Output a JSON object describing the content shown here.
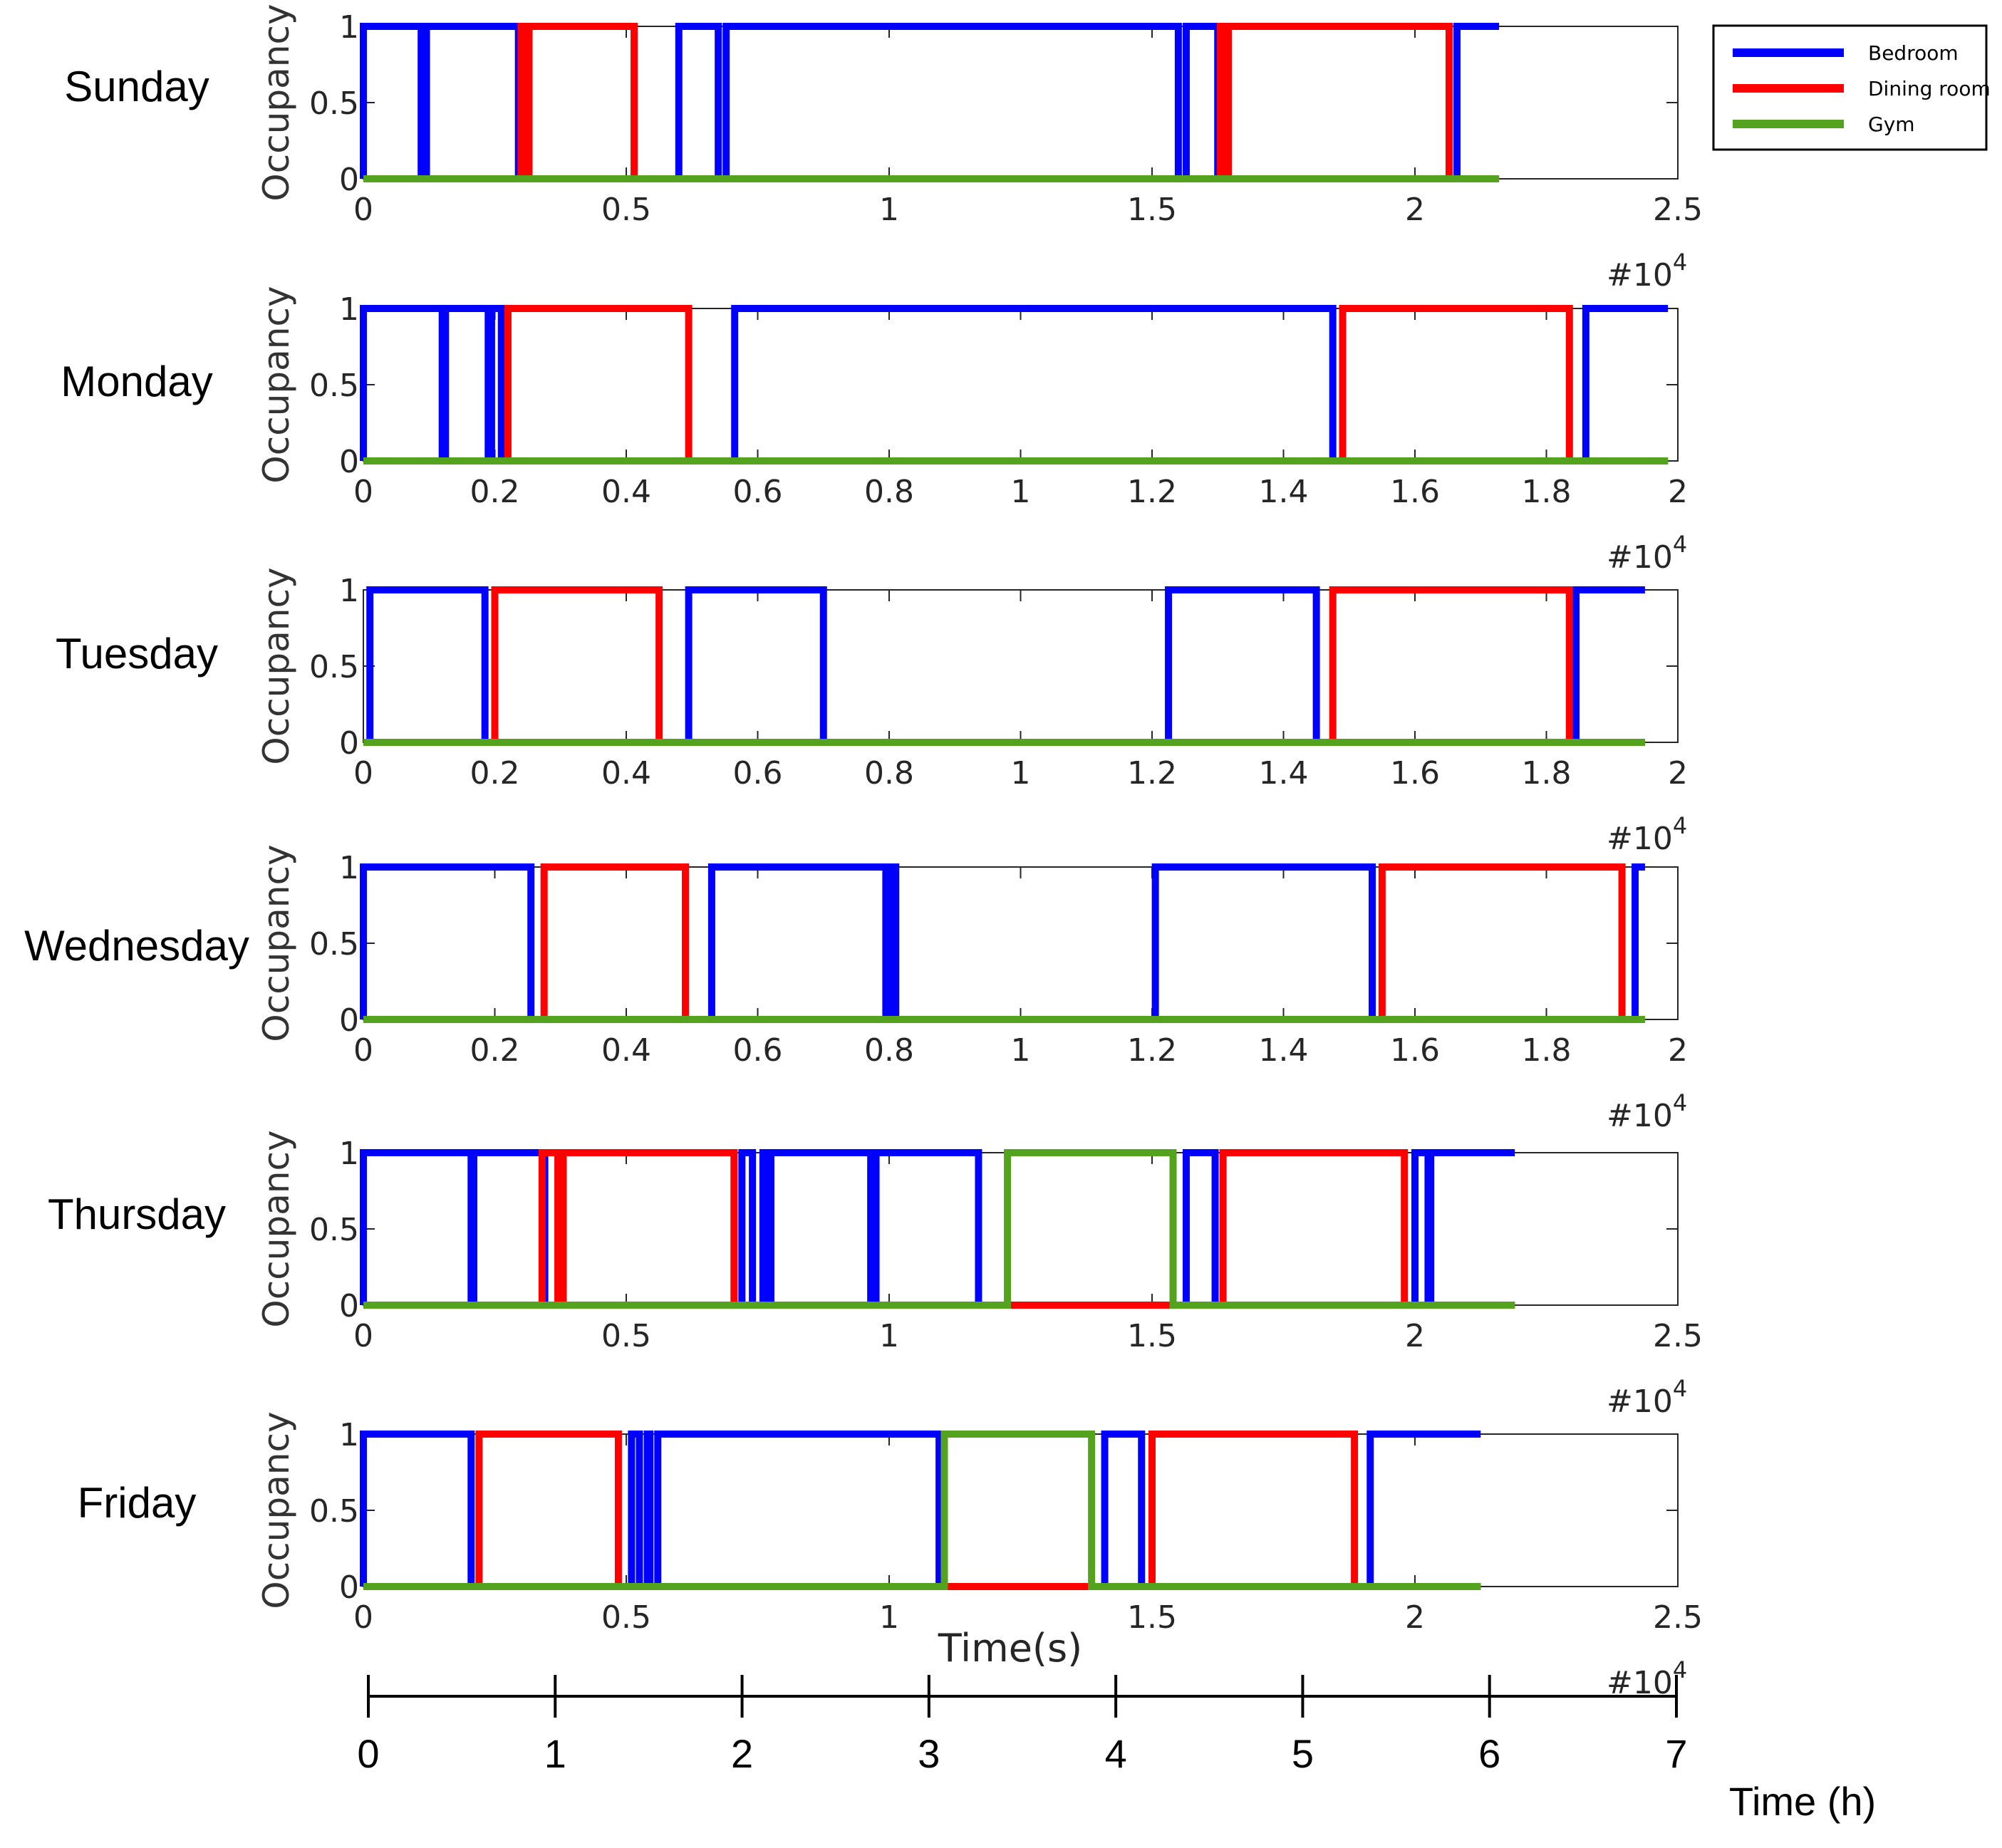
{
  "chart_data": {
    "type": "line",
    "title": "",
    "ylabel": "Occupancy",
    "xlabel": "Time(s)",
    "exponent_label": "#10",
    "exponent_power": "4",
    "yticks": [
      0,
      0.5,
      1
    ],
    "ytick_labels": [
      "0",
      "0.5",
      "1"
    ],
    "legend": [
      {
        "name": "Bedroom",
        "color": "#0000ff"
      },
      {
        "name": "Dining room",
        "color": "#ff0000"
      },
      {
        "name": "Gym",
        "color": "#54a31f"
      }
    ],
    "hour_axis": {
      "label": "Time (h)",
      "ticks": [
        "0",
        "1",
        "2",
        "3",
        "4",
        "5",
        "6",
        "7"
      ]
    },
    "panels": [
      {
        "day": "Sunday",
        "xlim": [
          0,
          2.5
        ],
        "xticks": [
          0,
          0.5,
          1,
          1.5,
          2,
          2.5
        ],
        "xtick_labels": [
          "0",
          "0.5",
          "1",
          "1.5",
          "2",
          "2.5"
        ],
        "series": [
          {
            "name": "Bedroom",
            "intervals": [
              [
                0.0,
                0.11
              ],
              [
                0.12,
                0.295
              ],
              [
                0.6,
                0.675
              ],
              [
                0.69,
                1.55
              ],
              [
                1.565,
                1.625
              ],
              [
                2.08,
                2.16
              ]
            ]
          },
          {
            "name": "Dining room",
            "intervals": [
              [
                0.3,
                0.31
              ],
              [
                0.315,
                0.515
              ],
              [
                1.63,
                1.64
              ],
              [
                1.645,
                2.065
              ]
            ]
          },
          {
            "name": "Gym",
            "intervals": []
          }
        ],
        "end": 2.16
      },
      {
        "day": "Monday",
        "xlim": [
          0,
          2
        ],
        "xticks": [
          0,
          0.2,
          0.4,
          0.6,
          0.8,
          1,
          1.2,
          1.4,
          1.6,
          1.8,
          2
        ],
        "xtick_labels": [
          "0",
          "0.2",
          "0.4",
          "0.6",
          "0.8",
          "1",
          "1.2",
          "1.4",
          "1.6",
          "1.8",
          "2"
        ],
        "series": [
          {
            "name": "Bedroom",
            "intervals": [
              [
                0.0,
                0.12
              ],
              [
                0.125,
                0.19
              ],
              [
                0.195,
                0.21
              ],
              [
                0.565,
                1.475
              ],
              [
                1.86,
                1.985
              ]
            ]
          },
          {
            "name": "Dining room",
            "intervals": [
              [
                0.22,
                0.495
              ],
              [
                1.49,
                1.835
              ]
            ]
          },
          {
            "name": "Gym",
            "intervals": []
          }
        ],
        "end": 1.985
      },
      {
        "day": "Tuesday",
        "xlim": [
          0,
          2
        ],
        "xticks": [
          0,
          0.2,
          0.4,
          0.6,
          0.8,
          1,
          1.2,
          1.4,
          1.6,
          1.8,
          2
        ],
        "xtick_labels": [
          "0",
          "0.2",
          "0.4",
          "0.6",
          "0.8",
          "1",
          "1.2",
          "1.4",
          "1.6",
          "1.8",
          "2"
        ],
        "series": [
          {
            "name": "Bedroom",
            "intervals": [
              [
                0.01,
                0.185
              ],
              [
                0.495,
                0.7
              ],
              [
                1.225,
                1.45
              ],
              [
                1.845,
                1.95
              ]
            ]
          },
          {
            "name": "Dining room",
            "intervals": [
              [
                0.2,
                0.45
              ],
              [
                1.475,
                1.835
              ]
            ]
          },
          {
            "name": "Gym",
            "intervals": []
          }
        ],
        "end": 1.95
      },
      {
        "day": "Wednesday",
        "xlim": [
          0,
          2
        ],
        "xticks": [
          0,
          0.2,
          0.4,
          0.6,
          0.8,
          1,
          1.2,
          1.4,
          1.6,
          1.8,
          2
        ],
        "xtick_labels": [
          "0",
          "0.2",
          "0.4",
          "0.6",
          "0.8",
          "1",
          "1.2",
          "1.4",
          "1.6",
          "1.8",
          "2"
        ],
        "series": [
          {
            "name": "Bedroom",
            "intervals": [
              [
                0.0,
                0.255
              ],
              [
                0.53,
                0.795
              ],
              [
                0.8,
                0.81
              ],
              [
                1.205,
                1.535
              ],
              [
                1.935,
                1.95
              ]
            ]
          },
          {
            "name": "Dining room",
            "intervals": [
              [
                0.275,
                0.49
              ],
              [
                1.55,
                1.915
              ]
            ]
          },
          {
            "name": "Gym",
            "intervals": []
          }
        ],
        "end": 1.95
      },
      {
        "day": "Thursday",
        "xlim": [
          0,
          2.5
        ],
        "xticks": [
          0,
          0.5,
          1,
          1.5,
          2,
          2.5
        ],
        "xtick_labels": [
          "0",
          "0.5",
          "1",
          "1.5",
          "2",
          "2.5"
        ],
        "series": [
          {
            "name": "Bedroom",
            "intervals": [
              [
                0.0,
                0.205
              ],
              [
                0.21,
                0.345
              ],
              [
                0.72,
                0.74
              ],
              [
                0.76,
                0.77
              ],
              [
                0.775,
                0.965
              ],
              [
                0.975,
                1.17
              ],
              [
                1.565,
                1.62
              ],
              [
                2.0,
                2.025
              ],
              [
                2.03,
                2.19
              ]
            ]
          },
          {
            "name": "Dining room",
            "intervals": [
              [
                0.34,
                0.37
              ],
              [
                0.38,
                0.705
              ],
              [
                1.635,
                1.98
              ]
            ]
          },
          {
            "name": "Gym",
            "intervals": [
              [
                1.225,
                1.54
              ]
            ]
          }
        ],
        "end": 2.19
      },
      {
        "day": "Friday",
        "xlim": [
          0,
          2.5
        ],
        "xticks": [
          0,
          0.5,
          1,
          1.5,
          2,
          2.5
        ],
        "xtick_labels": [
          "0",
          "0.5",
          "1",
          "1.5",
          "2",
          "2.5"
        ],
        "series": [
          {
            "name": "Bedroom",
            "intervals": [
              [
                0.0,
                0.205
              ],
              [
                0.51,
                0.525
              ],
              [
                0.54,
                0.545
              ],
              [
                0.56,
                1.095
              ],
              [
                1.41,
                1.48
              ],
              [
                1.915,
                2.125
              ]
            ]
          },
          {
            "name": "Dining room",
            "intervals": [
              [
                0.22,
                0.485
              ],
              [
                1.5,
                1.885
              ]
            ]
          },
          {
            "name": "Gym",
            "intervals": [
              [
                1.105,
                1.385
              ]
            ]
          }
        ],
        "end": 2.125
      }
    ]
  }
}
